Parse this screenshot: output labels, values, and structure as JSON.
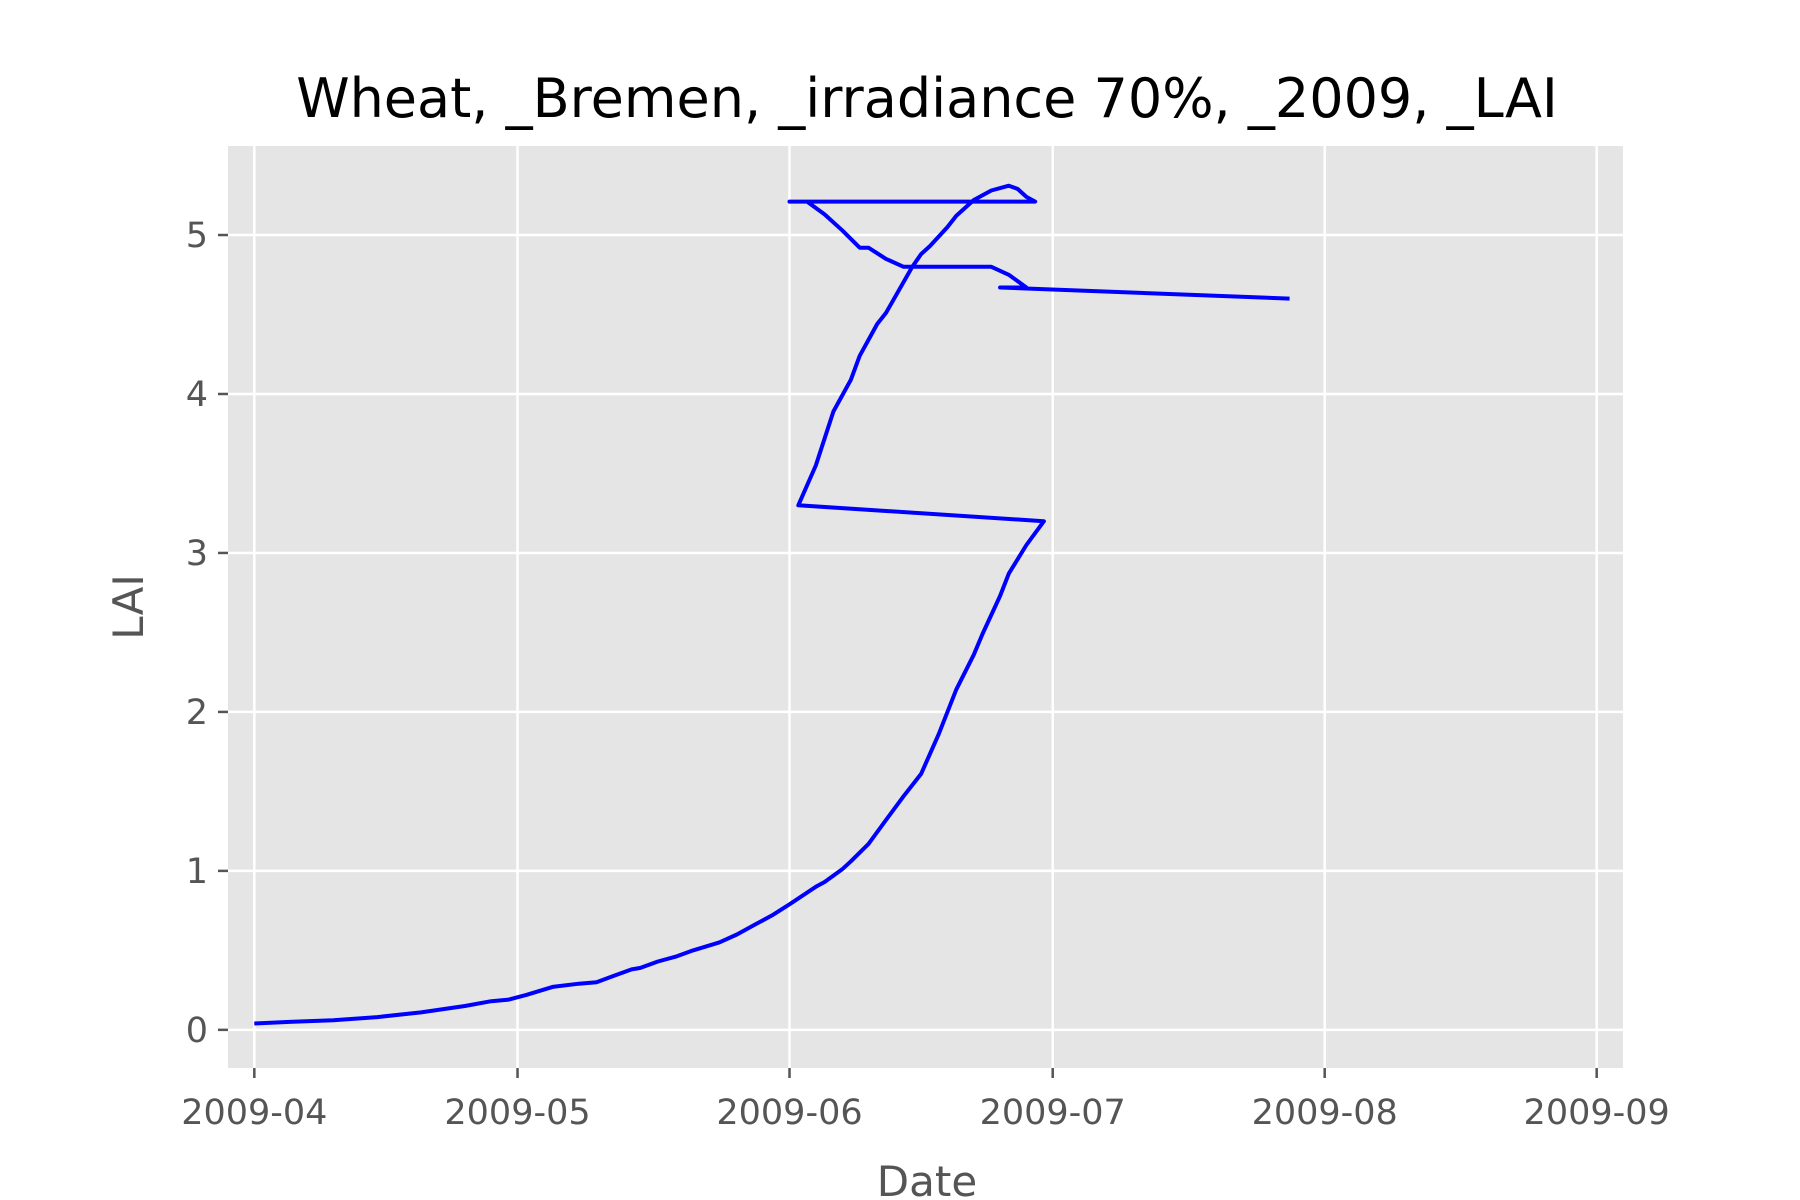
{
  "chart_data": {
    "type": "line",
    "title": "Wheat, _Bremen, _irradiance 70%, _2009, _LAI",
    "xlabel": "Date",
    "ylabel": "LAI",
    "x_axis_type": "date",
    "xlim": [
      "2009-03-29",
      "2009-09-04"
    ],
    "ylim": [
      -0.24,
      5.56
    ],
    "grid": true,
    "colors": {
      "background": "#e5e5e5",
      "grid": "#ffffff",
      "line": "#0000ff"
    },
    "x_ticks": [
      "2009-04-01",
      "2009-05-01",
      "2009-06-01",
      "2009-07-01",
      "2009-08-01",
      "2009-09-01"
    ],
    "x_tick_labels": [
      "2009-04",
      "2009-05",
      "2009-06",
      "2009-07",
      "2009-08",
      "2009-09"
    ],
    "y_ticks": [
      0,
      1,
      2,
      3,
      4,
      5
    ],
    "y_tick_labels": [
      "0",
      "1",
      "2",
      "3",
      "4",
      "5"
    ],
    "series": [
      {
        "color": "#0000ff",
        "points": [
          [
            "2009-04-01",
            0.04
          ],
          [
            "2009-04-05",
            0.05
          ],
          [
            "2009-04-10",
            0.06
          ],
          [
            "2009-04-15",
            0.08
          ],
          [
            "2009-04-20",
            0.11
          ],
          [
            "2009-04-25",
            0.15
          ],
          [
            "2009-04-28",
            0.18
          ],
          [
            "2009-04-30",
            0.19
          ],
          [
            "2009-05-02",
            0.22
          ],
          [
            "2009-05-05",
            0.27
          ],
          [
            "2009-05-08",
            0.29
          ],
          [
            "2009-05-10",
            0.3
          ],
          [
            "2009-05-12",
            0.34
          ],
          [
            "2009-05-14",
            0.38
          ],
          [
            "2009-05-15",
            0.39
          ],
          [
            "2009-05-17",
            0.43
          ],
          [
            "2009-05-19",
            0.46
          ],
          [
            "2009-05-21",
            0.5
          ],
          [
            "2009-05-24",
            0.55
          ],
          [
            "2009-05-26",
            0.6
          ],
          [
            "2009-05-28",
            0.66
          ],
          [
            "2009-05-30",
            0.72
          ],
          [
            "2009-06-01",
            0.79
          ],
          [
            "2009-06-04",
            0.9
          ],
          [
            "2009-06-05",
            0.93
          ],
          [
            "2009-06-07",
            1.01
          ],
          [
            "2009-06-08",
            1.06
          ],
          [
            "2009-06-10",
            1.17
          ],
          [
            "2009-06-12",
            1.32
          ],
          [
            "2009-06-14",
            1.47
          ],
          [
            "2009-06-16",
            1.61
          ],
          [
            "2009-06-18",
            1.86
          ],
          [
            "2009-06-20",
            2.14
          ],
          [
            "2009-06-22",
            2.36
          ],
          [
            "2009-06-23",
            2.49
          ],
          [
            "2009-06-25",
            2.73
          ],
          [
            "2009-06-26",
            2.87
          ],
          [
            "2009-06-28",
            3.05
          ],
          [
            "2009-06-30",
            3.2
          ],
          [
            "2009-06-02",
            3.3
          ],
          [
            "2009-06-04",
            3.55
          ],
          [
            "2009-06-06",
            3.89
          ],
          [
            "2009-06-08",
            4.09
          ],
          [
            "2009-06-09",
            4.24
          ],
          [
            "2009-06-11",
            4.44
          ],
          [
            "2009-06-12",
            4.51
          ],
          [
            "2009-06-15",
            4.8
          ],
          [
            "2009-06-16",
            4.88
          ],
          [
            "2009-06-17",
            4.93
          ],
          [
            "2009-06-19",
            5.05
          ],
          [
            "2009-06-20",
            5.12
          ],
          [
            "2009-06-22",
            5.22
          ],
          [
            "2009-06-24",
            5.28
          ],
          [
            "2009-06-26",
            5.31
          ],
          [
            "2009-06-27",
            5.29
          ],
          [
            "2009-06-28",
            5.24
          ],
          [
            "2009-06-29",
            5.21
          ],
          [
            "2009-06-01",
            5.21
          ],
          [
            "2009-06-03",
            5.21
          ],
          [
            "2009-06-05",
            5.13
          ],
          [
            "2009-06-07",
            5.03
          ],
          [
            "2009-06-09",
            4.92
          ],
          [
            "2009-06-10",
            4.92
          ],
          [
            "2009-06-12",
            4.85
          ],
          [
            "2009-06-14",
            4.8
          ],
          [
            "2009-06-16",
            4.8
          ],
          [
            "2009-06-19",
            4.8
          ],
          [
            "2009-06-23",
            4.8
          ],
          [
            "2009-06-24",
            4.8
          ],
          [
            "2009-06-26",
            4.75
          ],
          [
            "2009-06-28",
            4.67
          ],
          [
            "2009-06-25",
            4.67
          ],
          [
            "2009-07-28",
            4.6
          ]
        ]
      }
    ]
  }
}
